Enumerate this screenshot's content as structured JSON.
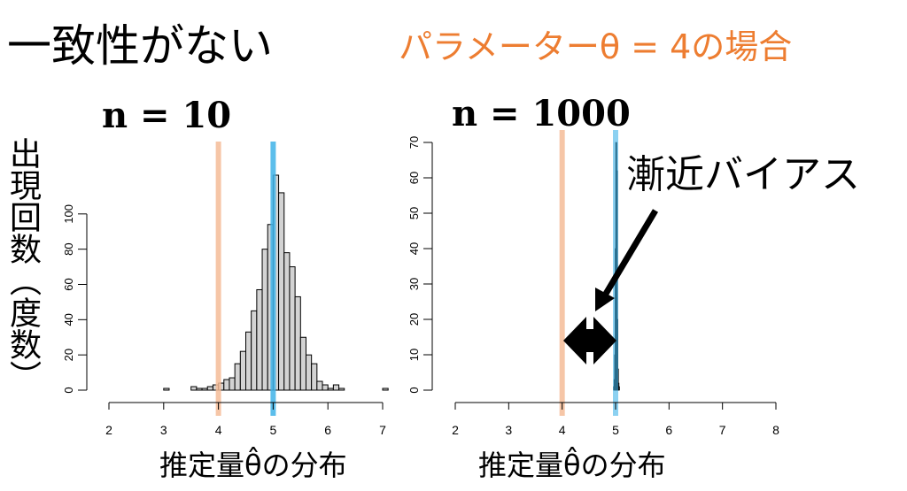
{
  "title": "一致性がない",
  "subtitle": "パラメーターθ = 4の場合",
  "y_axis_label": "出現回数（度数）",
  "annotation": "漸近バイアス",
  "colors": {
    "true_param": "#f4bc98",
    "estimate_mean": "#3fb3e8",
    "bars": "#d3d3d3",
    "accent": "#ed7d31"
  },
  "chart_data": [
    {
      "type": "bar",
      "title": "n = 10",
      "xlabel": "推定量θ̂の分布",
      "ylabel": "出現回数（度数）",
      "xlim": [
        2,
        7
      ],
      "ylim": [
        0,
        122
      ],
      "xticks": [
        2,
        3,
        4,
        5,
        6,
        7
      ],
      "yticks": [
        0,
        20,
        40,
        60,
        80,
        100
      ],
      "bin_width": 0.1,
      "bins": [
        [
          3.0,
          1
        ],
        [
          3.1,
          0
        ],
        [
          3.2,
          0
        ],
        [
          3.3,
          0
        ],
        [
          3.4,
          0
        ],
        [
          3.5,
          2
        ],
        [
          3.6,
          1
        ],
        [
          3.7,
          1
        ],
        [
          3.8,
          2
        ],
        [
          3.9,
          3
        ],
        [
          4.0,
          4
        ],
        [
          4.1,
          6
        ],
        [
          4.2,
          7
        ],
        [
          4.3,
          15
        ],
        [
          4.4,
          22
        ],
        [
          4.5,
          33
        ],
        [
          4.6,
          45
        ],
        [
          4.7,
          57
        ],
        [
          4.8,
          80
        ],
        [
          4.9,
          94
        ],
        [
          5.0,
          122
        ],
        [
          5.1,
          112
        ],
        [
          5.2,
          78
        ],
        [
          5.3,
          70
        ],
        [
          5.4,
          53
        ],
        [
          5.5,
          30
        ],
        [
          5.6,
          20
        ],
        [
          5.7,
          15
        ],
        [
          5.8,
          5
        ],
        [
          5.9,
          3
        ],
        [
          6.0,
          1
        ],
        [
          6.1,
          3
        ],
        [
          6.2,
          1
        ],
        [
          6.3,
          0
        ],
        [
          6.4,
          0
        ],
        [
          6.5,
          0
        ],
        [
          6.6,
          0
        ],
        [
          6.7,
          0
        ],
        [
          6.8,
          0
        ],
        [
          6.9,
          0
        ],
        [
          7.0,
          1
        ]
      ],
      "vlines": [
        {
          "x": 4,
          "color": "#f4bc98"
        },
        {
          "x": 5,
          "color": "#3fb3e8"
        }
      ]
    },
    {
      "type": "bar",
      "title": "n = 1000",
      "xlabel": "推定量θ̂の分布",
      "ylabel": "",
      "xlim": [
        2,
        8
      ],
      "ylim": [
        0,
        70
      ],
      "xticks": [
        2,
        3,
        4,
        5,
        6,
        7,
        8
      ],
      "yticks": [
        0,
        10,
        20,
        30,
        40,
        50,
        60,
        70
      ],
      "bin_width": 0.01,
      "bins": [
        [
          4.96,
          1
        ],
        [
          4.97,
          3
        ],
        [
          4.98,
          10
        ],
        [
          4.99,
          40
        ],
        [
          5.0,
          70
        ],
        [
          5.01,
          62
        ],
        [
          5.02,
          20
        ],
        [
          5.03,
          6
        ],
        [
          5.04,
          2
        ],
        [
          5.05,
          1
        ]
      ],
      "vlines": [
        {
          "x": 4,
          "color": "#f4bc98"
        },
        {
          "x": 5,
          "color": "#3fb3e8"
        }
      ]
    }
  ]
}
